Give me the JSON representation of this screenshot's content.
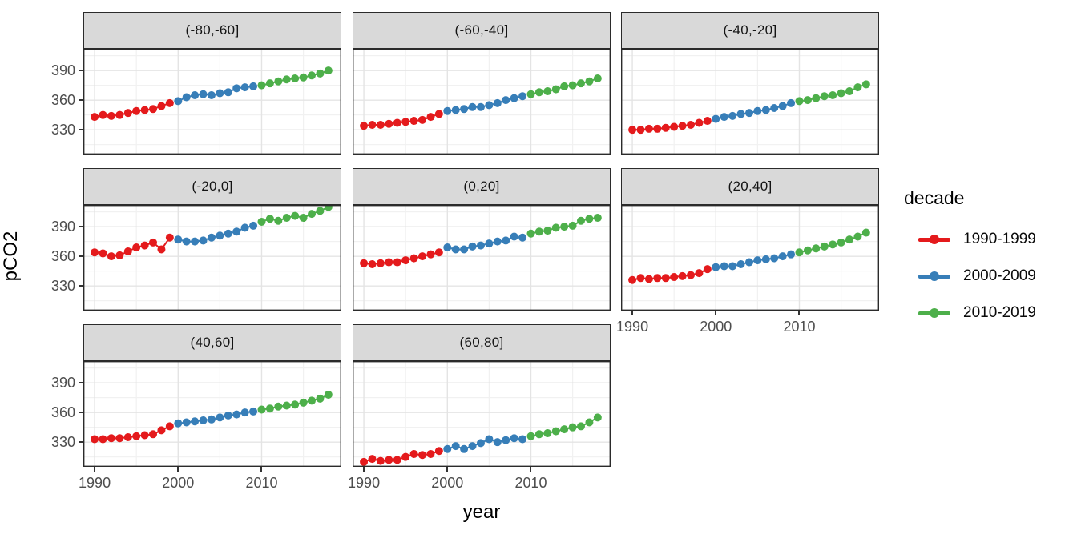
{
  "figure": {
    "background": "#FFFFFF"
  },
  "axis": {
    "x_title": "year",
    "y_title": "pCO2",
    "x_tick_labels": [
      "1990",
      "2000",
      "2010"
    ],
    "y_tick_labels": [
      "390",
      "360",
      "330"
    ]
  },
  "legend": {
    "title": "decade",
    "entries": [
      {
        "label": "1990-1999",
        "color": "#E41A1C"
      },
      {
        "label": "2000-2009",
        "color": "#377EB8"
      },
      {
        "label": "2010-2019",
        "color": "#4DAF4A"
      }
    ]
  },
  "chart_data": {
    "type": "scatter",
    "title": "",
    "xlabel": "year",
    "ylabel": "pCO2",
    "x_ticks": [
      1990,
      2000,
      2010
    ],
    "x_minor_ticks": [
      1995,
      2005,
      2015
    ],
    "y_ticks": [
      330,
      360,
      390
    ],
    "y_minor_ticks": [
      315,
      345,
      375,
      405
    ],
    "xlim": [
      1988.65,
      2019.55
    ],
    "ylim": [
      305,
      412
    ],
    "grid": "major+minor",
    "legend_title": "decade",
    "decades": [
      {
        "name": "1990-1999",
        "color": "#E41A1C",
        "from_year": 1990,
        "to_year": 1999
      },
      {
        "name": "2000-2009",
        "color": "#377EB8",
        "from_year": 2000,
        "to_year": 2009
      },
      {
        "name": "2010-2019",
        "color": "#4DAF4A",
        "from_year": 2010,
        "to_year": 2018
      }
    ],
    "years_start": 1990,
    "years_end": 2018,
    "facets": [
      {
        "label": "(-80,-60]",
        "values": [
          343,
          345,
          344,
          345,
          347,
          349,
          350,
          351,
          354,
          357,
          359,
          363,
          365,
          366,
          365,
          367,
          368,
          372,
          373,
          374,
          375,
          377,
          379,
          381,
          382,
          383,
          385,
          387,
          390
        ]
      },
      {
        "label": "(-60,-40]",
        "values": [
          334,
          335,
          335,
          336,
          337,
          338,
          339,
          340,
          343,
          346,
          349,
          350,
          351,
          353,
          353,
          355,
          357,
          360,
          362,
          364,
          366,
          368,
          369,
          371,
          374,
          375,
          377,
          379,
          382
        ]
      },
      {
        "label": "(-40,-20]",
        "values": [
          330,
          330,
          331,
          331,
          332,
          333,
          334,
          335,
          337,
          339,
          341,
          343,
          344,
          346,
          347,
          349,
          350,
          352,
          354,
          357,
          359,
          360,
          362,
          364,
          365,
          367,
          369,
          373,
          376
        ]
      },
      {
        "label": "(-20,0]",
        "values": [
          364,
          363,
          360,
          361,
          365,
          369,
          371,
          374,
          367,
          379,
          377,
          375,
          375,
          376,
          379,
          381,
          383,
          385,
          389,
          391,
          395,
          398,
          396,
          399,
          401,
          399,
          403,
          406,
          410
        ]
      },
      {
        "label": "(0,20]",
        "values": [
          353,
          352,
          353,
          354,
          354,
          356,
          358,
          360,
          362,
          364,
          369,
          367,
          367,
          370,
          371,
          373,
          375,
          376,
          380,
          379,
          383,
          385,
          386,
          389,
          390,
          391,
          396,
          398,
          399
        ]
      },
      {
        "label": "(20,40]",
        "values": [
          336,
          338,
          337,
          338,
          338,
          339,
          340,
          341,
          343,
          347,
          349,
          350,
          350,
          352,
          354,
          356,
          357,
          358,
          360,
          362,
          364,
          366,
          368,
          370,
          372,
          374,
          377,
          380,
          384
        ]
      },
      {
        "label": "(40,60]",
        "values": [
          333,
          333,
          334,
          334,
          335,
          336,
          337,
          338,
          342,
          346,
          349,
          350,
          351,
          352,
          353,
          355,
          357,
          358,
          360,
          361,
          363,
          364,
          366,
          367,
          368,
          370,
          372,
          374,
          378
        ]
      },
      {
        "label": "(60,80]",
        "values": [
          310,
          313,
          311,
          312,
          312,
          315,
          318,
          317,
          318,
          321,
          323,
          326,
          323,
          326,
          329,
          333,
          330,
          332,
          334,
          333,
          336,
          338,
          339,
          341,
          343,
          345,
          346,
          350,
          355
        ]
      }
    ],
    "style": {
      "strip_fill": "#D9D9D9",
      "panel_border": "#2b2b2b",
      "grid_major": "#E4E4E4",
      "grid_minor": "#F1F1F1",
      "tick_text": "#4D4D4D",
      "point_radius": 5
    }
  }
}
